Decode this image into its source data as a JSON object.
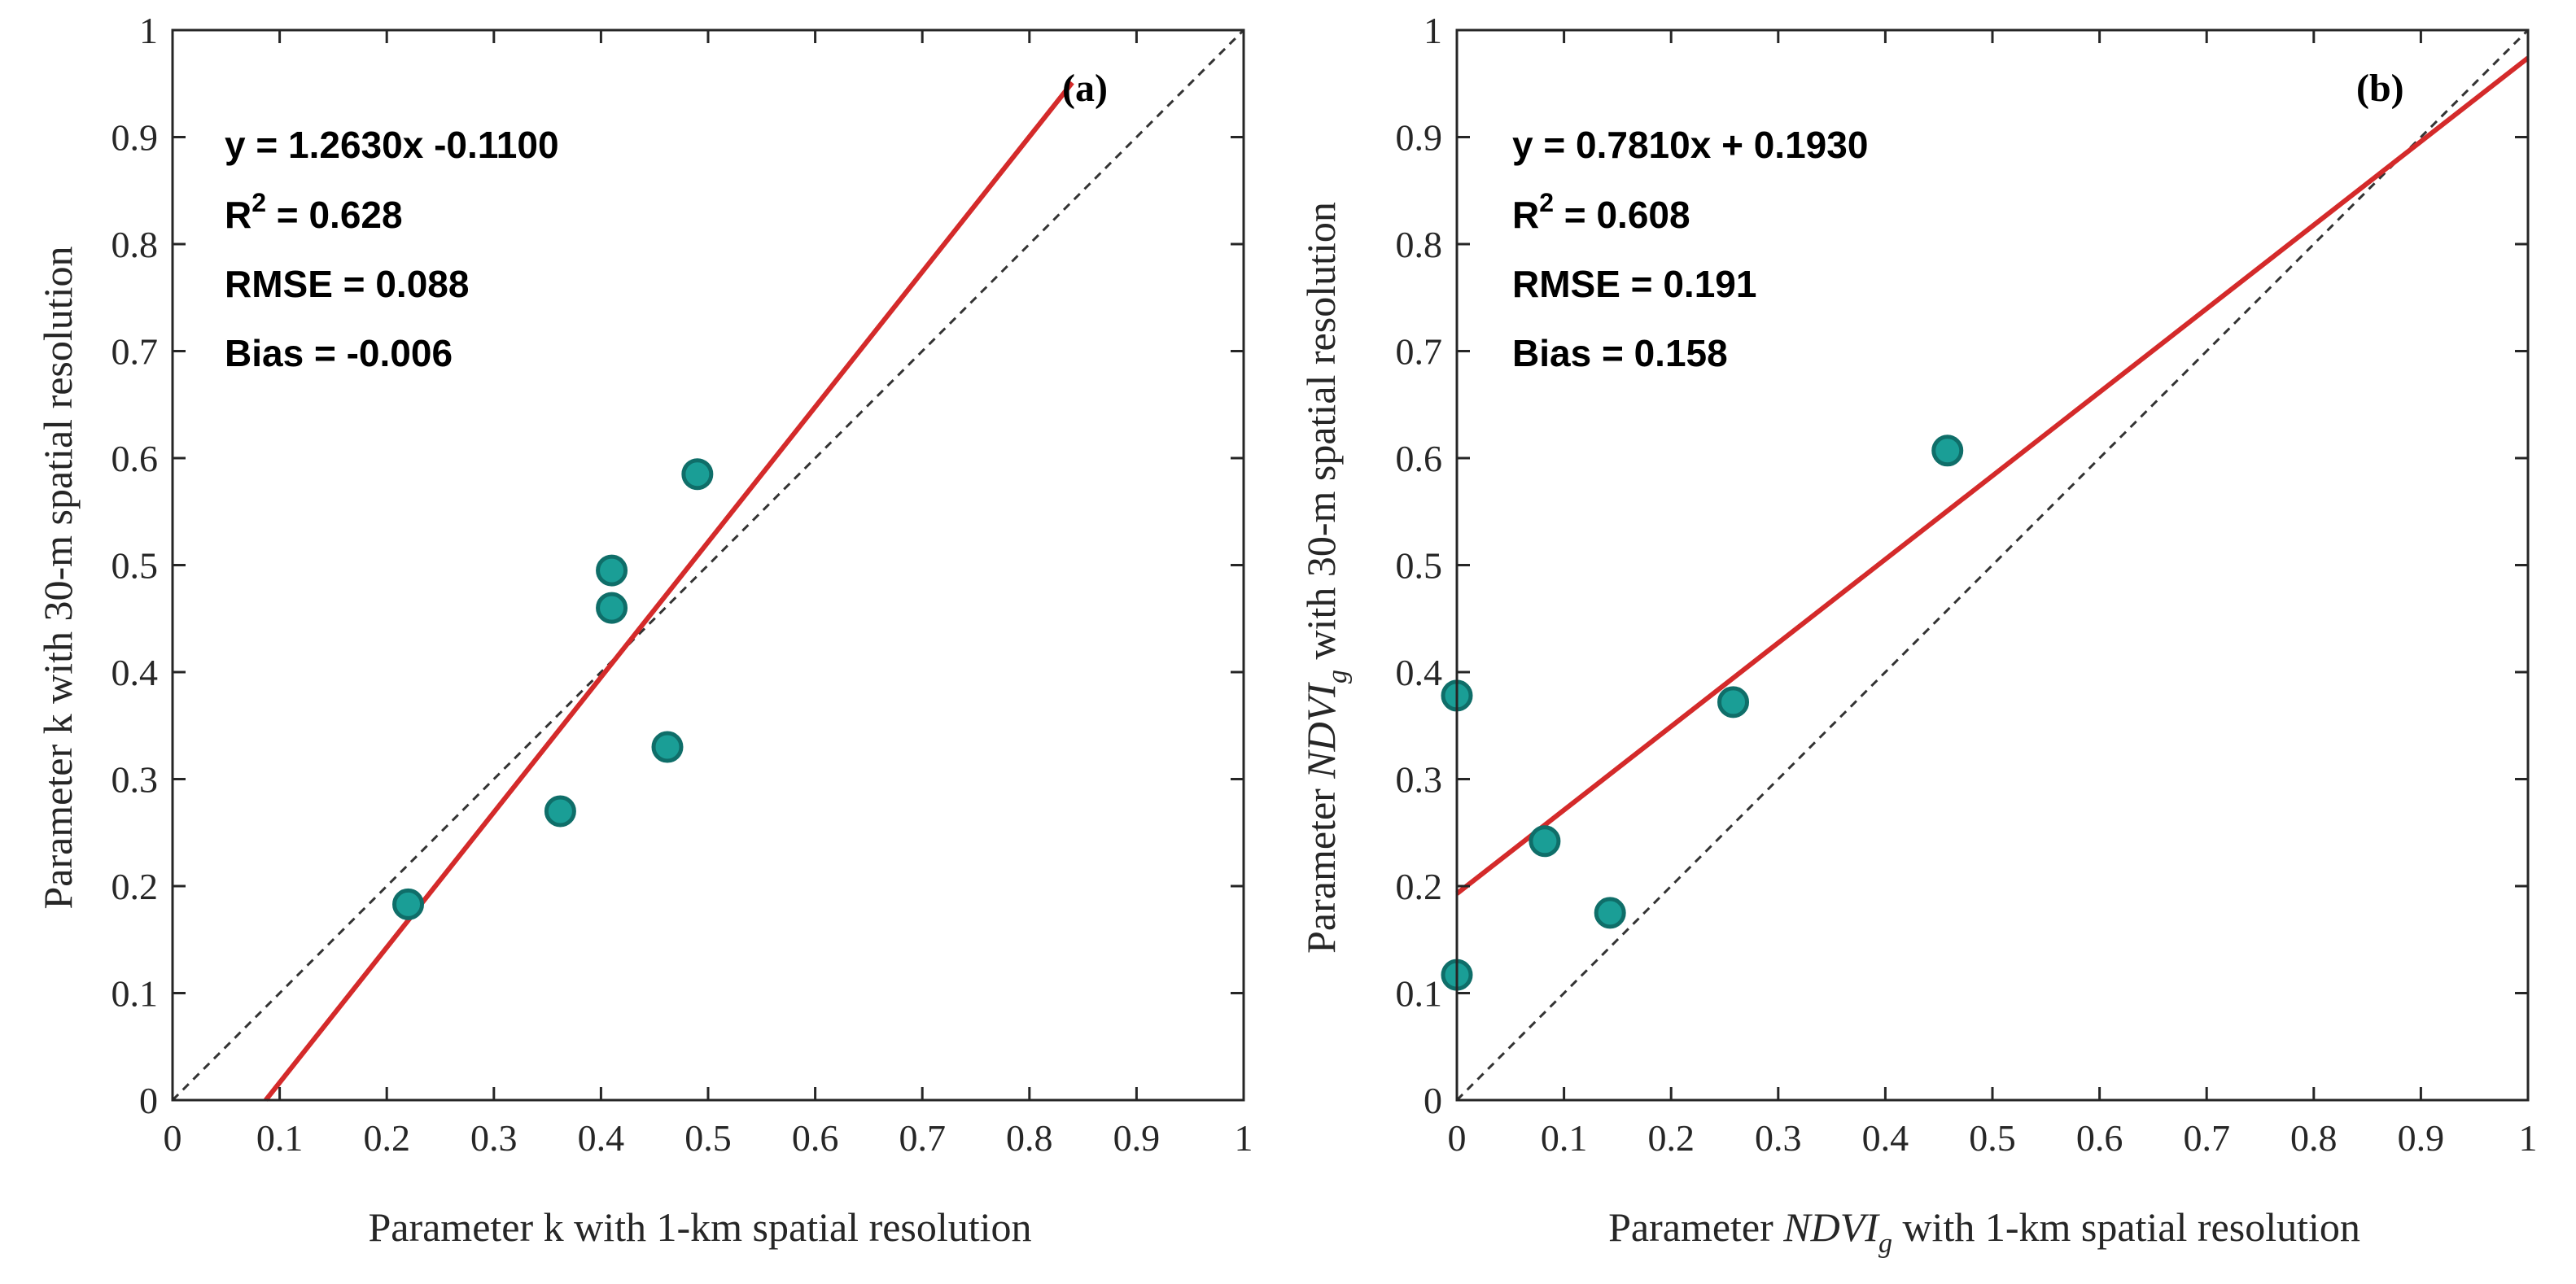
{
  "chart_data": [
    {
      "type": "scatter",
      "panel_label": "(a)",
      "xlabel": "Parameter k with 1-km spatial resolution",
      "ylabel": "Parameter k with 30-m spatial resolution",
      "xlim": [
        0,
        1
      ],
      "ylim": [
        0,
        1
      ],
      "x_ticks": [
        "0",
        "0.1",
        "0.2",
        "0.3",
        "0.4",
        "0.5",
        "0.6",
        "0.7",
        "0.8",
        "0.9",
        "1"
      ],
      "y_ticks": [
        "0",
        "0.1",
        "0.2",
        "0.3",
        "0.4",
        "0.5",
        "0.6",
        "0.7",
        "0.8",
        "0.9",
        "1"
      ],
      "points": [
        {
          "x": 0.22,
          "y": 0.183
        },
        {
          "x": 0.362,
          "y": 0.27
        },
        {
          "x": 0.41,
          "y": 0.46
        },
        {
          "x": 0.41,
          "y": 0.495
        },
        {
          "x": 0.462,
          "y": 0.33
        },
        {
          "x": 0.49,
          "y": 0.585
        }
      ],
      "fit_line": {
        "slope": 1.263,
        "intercept": -0.11,
        "x_range": [
          0.087,
          0.84
        ]
      },
      "reference_line": "1:1",
      "stats": {
        "equation": "y = 1.2630x -0.1100",
        "r2_label": "R",
        "r2_sup": "2",
        "r2_value": " = 0.628",
        "rmse": "RMSE = 0.088",
        "bias": "Bias = -0.006"
      },
      "colors": {
        "points": "#1a9e96",
        "point_edge": "#0f6e69",
        "fit": "#d42a2a",
        "reference": "#333333"
      }
    },
    {
      "type": "scatter",
      "panel_label": "(b)",
      "xlabel_prefix": "Parameter ",
      "xlabel_italic": "NDVI",
      "xlabel_sub": "g",
      "xlabel_suffix": " with 1-km spatial resolution",
      "ylabel_prefix": "Parameter ",
      "ylabel_italic": "NDVI",
      "ylabel_sub": "g",
      "ylabel_suffix": " with 30-m spatial resolution",
      "xlim": [
        0,
        1
      ],
      "ylim": [
        0,
        1
      ],
      "x_ticks": [
        "0",
        "0.1",
        "0.2",
        "0.3",
        "0.4",
        "0.5",
        "0.6",
        "0.7",
        "0.8",
        "0.9",
        "1"
      ],
      "y_ticks": [
        "0",
        "0.1",
        "0.2",
        "0.3",
        "0.4",
        "0.5",
        "0.6",
        "0.7",
        "0.8",
        "0.9",
        "1"
      ],
      "points": [
        {
          "x": 0.0,
          "y": 0.378
        },
        {
          "x": 0.0,
          "y": 0.117
        },
        {
          "x": 0.082,
          "y": 0.242
        },
        {
          "x": 0.143,
          "y": 0.175
        },
        {
          "x": 0.258,
          "y": 0.372
        },
        {
          "x": 0.458,
          "y": 0.607
        }
      ],
      "fit_line": {
        "slope": 0.781,
        "intercept": 0.193,
        "x_range": [
          0,
          1
        ]
      },
      "reference_line": "1:1",
      "stats": {
        "equation": "y = 0.7810x + 0.1930",
        "r2_label": "R",
        "r2_sup": "2",
        "r2_value": " = 0.608",
        "rmse": "RMSE = 0.191",
        "bias": "Bias = 0.158"
      },
      "colors": {
        "points": "#1a9e96",
        "point_edge": "#0f6e69",
        "fit": "#d42a2a",
        "reference": "#333333"
      }
    }
  ]
}
